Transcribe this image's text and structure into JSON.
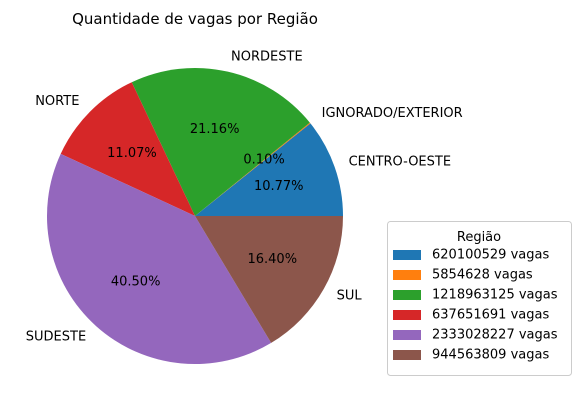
{
  "chart_data": {
    "type": "pie",
    "title": "Quantidade de vagas por Região",
    "start_angle_deg": 0,
    "direction": "counterclockwise",
    "slices": [
      {
        "label": "CENTRO-OESTE",
        "value": 620100529,
        "pct_label": "10.77%",
        "legend": "620100529 vagas",
        "color": "#1f77b4"
      },
      {
        "label": "IGNORADO/EXTERIOR",
        "value": 5854628,
        "pct_label": "0.10%",
        "legend": "5854628 vagas",
        "color": "#ff7f0e"
      },
      {
        "label": "NORDESTE",
        "value": 1218963125,
        "pct_label": "21.16%",
        "legend": "1218963125 vagas",
        "color": "#2ca02c"
      },
      {
        "label": "NORTE",
        "value": 637651691,
        "pct_label": "11.07%",
        "legend": "637651691 vagas",
        "color": "#d62728"
      },
      {
        "label": "SUDESTE",
        "value": 2333028227,
        "pct_label": "40.50%",
        "legend": "2333028227 vagas",
        "color": "#9467bd"
      },
      {
        "label": "SUL",
        "value": 944563809,
        "pct_label": "16.40%",
        "legend": "944563809 vagas",
        "color": "#8c564b"
      }
    ],
    "legend": {
      "title": "Região",
      "placement": "lower-right"
    }
  }
}
